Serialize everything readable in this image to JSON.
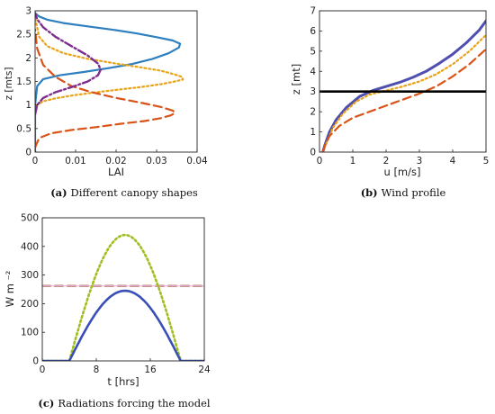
{
  "chart_data": [
    {
      "type": "line",
      "caption_tag": "(a)",
      "caption": "Different canopy shapes",
      "xlabel": "LAI",
      "ylabel": "z [mts]",
      "xlim": [
        0,
        0.04
      ],
      "ylim": [
        0,
        3
      ],
      "xticks": [
        "0",
        "0.01",
        "0.02",
        "0.03",
        "0.04"
      ],
      "yticks": [
        "0",
        "0.5",
        "1",
        "1.5",
        "2",
        "2.5",
        "3"
      ],
      "series": [
        {
          "color": "#2e7fbf",
          "style": "solid",
          "width": 2.2,
          "x": [
            0,
            0,
            0.0005,
            0.002,
            0.006,
            0.012,
            0.018,
            0.024,
            0.029,
            0.033,
            0.0355,
            0.0358,
            0.034,
            0.03,
            0.025,
            0.019,
            0.013,
            0.007,
            0.003,
            0.001,
            0
          ],
          "y": [
            0,
            1.0,
            1.4,
            1.55,
            1.63,
            1.7,
            1.78,
            1.87,
            1.98,
            2.1,
            2.22,
            2.3,
            2.37,
            2.44,
            2.52,
            2.6,
            2.67,
            2.74,
            2.81,
            2.88,
            2.95
          ]
        },
        {
          "color": "#e8a317",
          "style": "dotted",
          "width": 2.2,
          "x": [
            0,
            0.0005,
            0.002,
            0.005,
            0.009,
            0.014,
            0.02,
            0.026,
            0.031,
            0.0345,
            0.0365,
            0.0362,
            0.034,
            0.031,
            0.026,
            0.02,
            0.013,
            0.007,
            0.003,
            0.001,
            0
          ],
          "y": [
            0.9,
            1.0,
            1.08,
            1.14,
            1.2,
            1.26,
            1.32,
            1.38,
            1.44,
            1.5,
            1.54,
            1.6,
            1.66,
            1.73,
            1.8,
            1.88,
            1.98,
            2.1,
            2.25,
            2.45,
            2.85
          ]
        },
        {
          "color": "#d95319",
          "style": "dashed",
          "width": 2.2,
          "x": [
            0,
            0.001,
            0.004,
            0.009,
            0.015,
            0.021,
            0.027,
            0.031,
            0.0335,
            0.0345,
            0.034,
            0.031,
            0.026,
            0.02,
            0.014,
            0.009,
            0.005,
            0.002,
            0.0005,
            0
          ],
          "y": [
            0.1,
            0.3,
            0.4,
            0.47,
            0.53,
            0.6,
            0.66,
            0.72,
            0.78,
            0.83,
            0.88,
            0.96,
            1.05,
            1.15,
            1.27,
            1.4,
            1.6,
            1.85,
            2.2,
            2.6
          ]
        },
        {
          "color": "#7e2f8e",
          "style": "dashdot",
          "width": 2.4,
          "x": [
            0,
            0.0005,
            0.002,
            0.005,
            0.009,
            0.013,
            0.0155,
            0.0162,
            0.0155,
            0.013,
            0.009,
            0.005,
            0.002,
            0.0005,
            0
          ],
          "y": [
            0.8,
            1.0,
            1.15,
            1.27,
            1.38,
            1.5,
            1.63,
            1.75,
            1.88,
            2.05,
            2.25,
            2.45,
            2.65,
            2.82,
            2.95
          ]
        }
      ]
    },
    {
      "type": "line",
      "caption_tag": "(b)",
      "caption": "Wind profile",
      "xlabel": "u [m/s]",
      "ylabel": "z [mt]",
      "xlim": [
        0,
        5
      ],
      "ylim": [
        0,
        7
      ],
      "xticks": [
        "0",
        "1",
        "2",
        "3",
        "4",
        "5"
      ],
      "yticks": [
        "0",
        "1",
        "2",
        "3",
        "4",
        "5",
        "6",
        "7"
      ],
      "hline": {
        "y": 3,
        "color": "#000000"
      },
      "series": [
        {
          "color": "#4f4fb0",
          "style": "solid",
          "width": 3,
          "x": [
            0.1,
            0.15,
            0.3,
            0.5,
            0.8,
            1.2,
            1.6,
            2.0,
            2.4,
            2.8,
            3.2,
            3.6,
            4.0,
            4.4,
            4.8,
            5.0
          ],
          "y": [
            0,
            0.3,
            1.0,
            1.6,
            2.2,
            2.75,
            3.05,
            3.25,
            3.45,
            3.7,
            4.0,
            4.4,
            4.85,
            5.4,
            6.05,
            6.5
          ]
        },
        {
          "color": "#e8a317",
          "style": "dotted",
          "width": 2.2,
          "x": [
            0.1,
            0.2,
            0.4,
            0.7,
            1.1,
            1.5,
            2.0,
            2.5,
            3.0,
            3.5,
            4.0,
            4.5,
            5.0
          ],
          "y": [
            0,
            0.4,
            1.2,
            1.9,
            2.5,
            2.85,
            3.05,
            3.25,
            3.5,
            3.85,
            4.35,
            5.0,
            5.8
          ]
        },
        {
          "color": "#d95319",
          "style": "dashed",
          "width": 2.2,
          "x": [
            0.1,
            0.15,
            0.3,
            0.6,
            1.0,
            1.5,
            2.0,
            2.5,
            3.0,
            3.5,
            4.0,
            4.5,
            5.0
          ],
          "y": [
            0,
            0.3,
            0.8,
            1.3,
            1.7,
            2.0,
            2.3,
            2.6,
            2.9,
            3.25,
            3.75,
            4.35,
            5.1
          ]
        }
      ]
    },
    {
      "type": "line",
      "caption_tag": "(c)",
      "caption": "Radiations forcing the model",
      "xlabel": "t [hrs]",
      "ylabel": "W m ⁻²",
      "xlim": [
        0,
        24
      ],
      "ylim": [
        0,
        500
      ],
      "xticks": [
        "0",
        "8",
        "16",
        "24"
      ],
      "xtick_values": [
        0,
        8,
        16,
        24
      ],
      "yticks": [
        "0",
        "100",
        "200",
        "300",
        "400",
        "500"
      ],
      "series": [
        {
          "color": "#a0522d",
          "style": "dashed",
          "width": 2.2,
          "x": [
            0,
            24
          ],
          "y": [
            262,
            262
          ]
        },
        {
          "color": "#e7b0e7",
          "style": "solid",
          "width": 1.2,
          "x": [
            0,
            24
          ],
          "y": [
            262,
            262
          ]
        },
        {
          "color": "#9fbf1f",
          "style": "dotted",
          "width": 2.6,
          "peak": 440,
          "t0": 4,
          "t1": 20.5
        },
        {
          "color": "#3a4fb5",
          "style": "solid",
          "width": 2.6,
          "peak": 245,
          "t0": 4,
          "t1": 20.5
        }
      ]
    }
  ]
}
